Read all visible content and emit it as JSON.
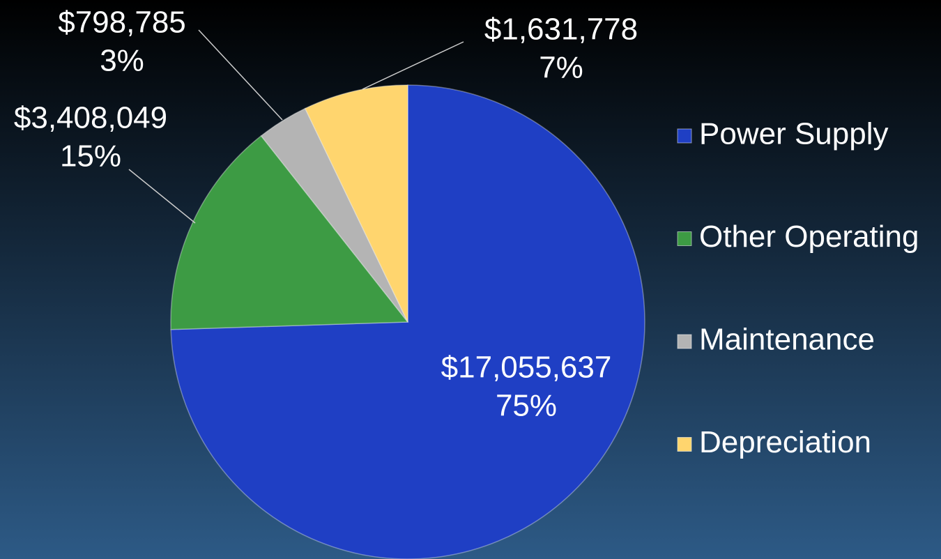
{
  "chart_data": {
    "type": "pie",
    "categories": [
      "Power Supply",
      "Other Operating",
      "Maintenance",
      "Depreciation"
    ],
    "values": [
      17055637,
      3408049,
      798785,
      1631778
    ],
    "value_labels": [
      "$17,055,637",
      "$3,408,049",
      "$798,785",
      "$1,631,778"
    ],
    "percent_labels": [
      "75%",
      "15%",
      "3%",
      "7%"
    ],
    "colors": [
      "#1f3fc4",
      "#3d9b44",
      "#b4b4b4",
      "#ffd56e"
    ],
    "legend": "right"
  }
}
